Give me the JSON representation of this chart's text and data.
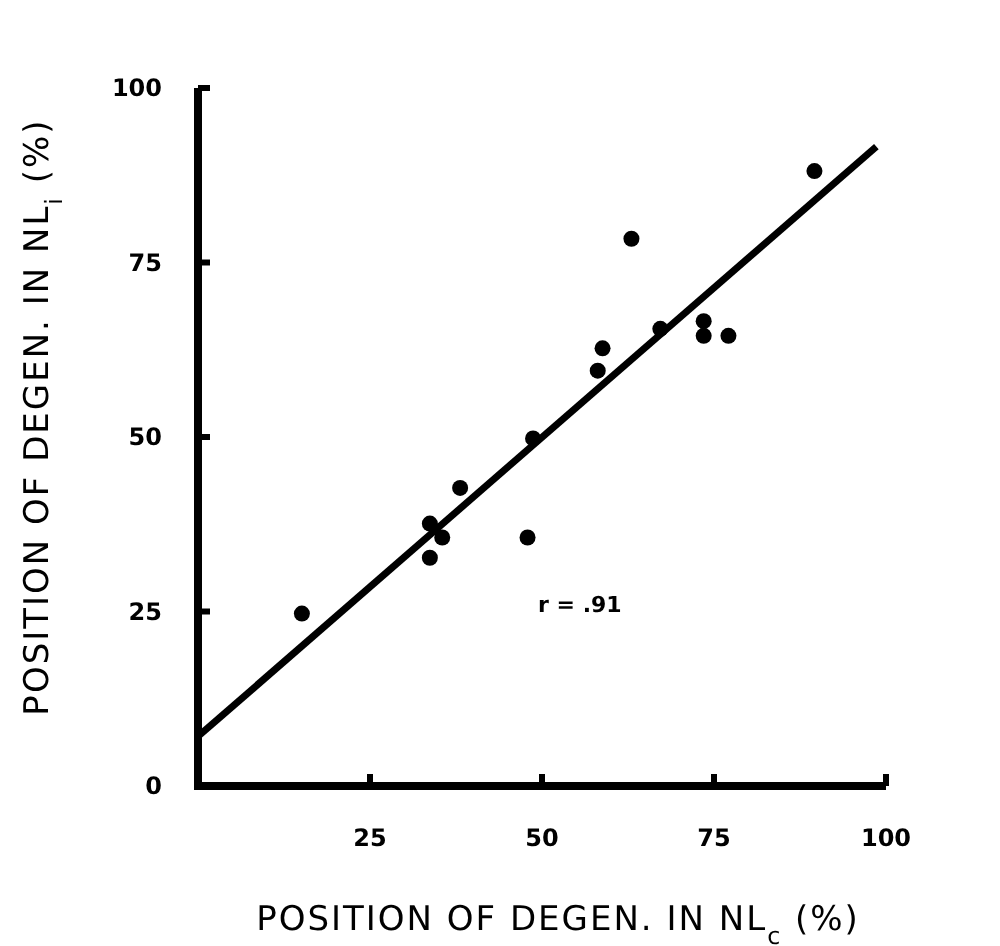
{
  "chart_data": {
    "type": "scatter",
    "xlabel": "POSITION OF DEGEN. IN NL$_{c}$ (%)",
    "ylabel": "POSITION OF DEGEN. IN NL$_{i}$ (%)",
    "xlim": [
      0,
      100
    ],
    "ylim": [
      0,
      100
    ],
    "xticks": [
      25,
      50,
      75,
      100
    ],
    "yticks": [
      0,
      25,
      50,
      75,
      100
    ],
    "grid": false,
    "marker": "circle",
    "annotations": [
      "r = .91"
    ],
    "series": [
      {
        "color": "#000000",
        "x": [
          15.1,
          33.7,
          33.7,
          35.5,
          38.1,
          47.9,
          48.7,
          58.1,
          58.8,
          63.0,
          67.2,
          73.5,
          73.5,
          77.1,
          89.6
        ],
        "values": [
          24.7,
          37.6,
          32.7,
          35.6,
          42.7,
          35.6,
          49.8,
          59.5,
          62.7,
          78.4,
          65.5,
          66.6,
          64.5,
          64.5,
          88.1
        ]
      },
      {
        "type": "line",
        "color": "#000000",
        "x": [
          0,
          98.6
        ],
        "values": [
          7.1,
          91.6
        ],
        "marker": "none"
      }
    ]
  }
}
